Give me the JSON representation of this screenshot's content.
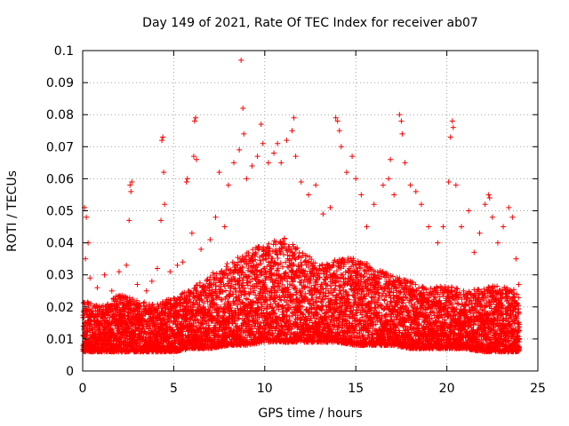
{
  "chart_data": {
    "type": "scatter",
    "title": "Day 149 of 2021, Rate Of TEC Index for receiver ab07",
    "xlabel": "GPS time / hours",
    "ylabel": "ROTI / TECUs",
    "xlim": [
      0,
      25
    ],
    "ylim": [
      0,
      0.1
    ],
    "xticks": [
      0,
      5,
      10,
      15,
      20,
      25
    ],
    "xtick_labels": [
      "0",
      "5",
      "10",
      "15",
      "20",
      "25"
    ],
    "yticks": [
      0,
      0.01,
      0.02,
      0.03,
      0.04,
      0.05,
      0.06,
      0.07,
      0.08,
      0.09,
      0.1
    ],
    "ytick_labels": [
      "0",
      "0.01",
      "0.02",
      "0.03",
      "0.04",
      "0.05",
      "0.06",
      "0.07",
      "0.08",
      "0.09",
      "0.1"
    ],
    "grid": true,
    "marker": "+",
    "color": "#ff0000",
    "series": [
      {
        "points": [
          [
            0.1,
            0.051
          ],
          [
            0.2,
            0.048
          ],
          [
            0.3,
            0.04
          ],
          [
            0.15,
            0.035
          ],
          [
            0.4,
            0.029
          ],
          [
            0.8,
            0.026
          ],
          [
            1.2,
            0.03
          ],
          [
            1.6,
            0.025
          ],
          [
            2.0,
            0.031
          ],
          [
            2.4,
            0.033
          ],
          [
            2.55,
            0.047
          ],
          [
            2.6,
            0.058
          ],
          [
            2.65,
            0.056
          ],
          [
            2.7,
            0.059
          ],
          [
            3.0,
            0.027
          ],
          [
            3.5,
            0.025
          ],
          [
            3.8,
            0.028
          ],
          [
            4.1,
            0.032
          ],
          [
            4.3,
            0.047
          ],
          [
            4.35,
            0.072
          ],
          [
            4.4,
            0.073
          ],
          [
            4.45,
            0.062
          ],
          [
            4.5,
            0.052
          ],
          [
            4.8,
            0.031
          ],
          [
            5.2,
            0.033
          ],
          [
            5.5,
            0.034
          ],
          [
            5.7,
            0.059
          ],
          [
            5.75,
            0.06
          ],
          [
            6.0,
            0.043
          ],
          [
            6.1,
            0.067
          ],
          [
            6.15,
            0.078
          ],
          [
            6.2,
            0.079
          ],
          [
            6.25,
            0.066
          ],
          [
            6.5,
            0.038
          ],
          [
            7.0,
            0.041
          ],
          [
            7.3,
            0.048
          ],
          [
            7.5,
            0.062
          ],
          [
            7.8,
            0.045
          ],
          [
            8.0,
            0.058
          ],
          [
            8.3,
            0.065
          ],
          [
            8.6,
            0.069
          ],
          [
            8.7,
            0.097
          ],
          [
            8.8,
            0.082
          ],
          [
            8.85,
            0.074
          ],
          [
            9.0,
            0.06
          ],
          [
            9.3,
            0.064
          ],
          [
            9.6,
            0.067
          ],
          [
            9.8,
            0.077
          ],
          [
            9.9,
            0.071
          ],
          [
            10.2,
            0.065
          ],
          [
            10.5,
            0.068
          ],
          [
            10.7,
            0.071
          ],
          [
            10.9,
            0.065
          ],
          [
            11.2,
            0.072
          ],
          [
            11.5,
            0.075
          ],
          [
            11.6,
            0.079
          ],
          [
            11.7,
            0.067
          ],
          [
            12.0,
            0.059
          ],
          [
            12.4,
            0.055
          ],
          [
            12.8,
            0.058
          ],
          [
            13.2,
            0.049
          ],
          [
            13.6,
            0.051
          ],
          [
            13.9,
            0.079
          ],
          [
            14.0,
            0.078
          ],
          [
            14.1,
            0.075
          ],
          [
            14.2,
            0.07
          ],
          [
            14.5,
            0.062
          ],
          [
            14.8,
            0.067
          ],
          [
            15.0,
            0.06
          ],
          [
            15.3,
            0.055
          ],
          [
            15.6,
            0.045
          ],
          [
            16.0,
            0.052
          ],
          [
            16.5,
            0.058
          ],
          [
            16.8,
            0.06
          ],
          [
            16.9,
            0.066
          ],
          [
            17.1,
            0.055
          ],
          [
            17.4,
            0.08
          ],
          [
            17.5,
            0.078
          ],
          [
            17.55,
            0.074
          ],
          [
            17.7,
            0.065
          ],
          [
            18.0,
            0.058
          ],
          [
            18.3,
            0.056
          ],
          [
            18.6,
            0.052
          ],
          [
            19.0,
            0.045
          ],
          [
            19.5,
            0.04
          ],
          [
            19.8,
            0.045
          ],
          [
            20.1,
            0.059
          ],
          [
            20.2,
            0.073
          ],
          [
            20.3,
            0.078
          ],
          [
            20.35,
            0.076
          ],
          [
            20.5,
            0.058
          ],
          [
            20.8,
            0.045
          ],
          [
            21.2,
            0.05
          ],
          [
            21.5,
            0.037
          ],
          [
            21.8,
            0.043
          ],
          [
            22.1,
            0.052
          ],
          [
            22.3,
            0.055
          ],
          [
            22.35,
            0.054
          ],
          [
            22.5,
            0.048
          ],
          [
            22.8,
            0.04
          ],
          [
            23.1,
            0.045
          ],
          [
            23.4,
            0.051
          ],
          [
            23.6,
            0.048
          ],
          [
            23.8,
            0.035
          ],
          [
            23.95,
            0.027
          ]
        ]
      }
    ],
    "dense_band": {
      "note_hidden": false,
      "envelope_x": [
        0,
        1,
        2,
        3,
        4,
        5,
        6,
        7,
        8,
        9,
        10,
        11,
        12,
        13,
        14,
        15,
        16,
        17,
        18,
        19,
        20,
        21,
        22,
        23,
        24
      ],
      "envelope_low": [
        0.006,
        0.006,
        0.006,
        0.006,
        0.006,
        0.006,
        0.007,
        0.007,
        0.008,
        0.008,
        0.009,
        0.009,
        0.009,
        0.009,
        0.009,
        0.008,
        0.008,
        0.008,
        0.007,
        0.007,
        0.007,
        0.007,
        0.006,
        0.006,
        0.006
      ],
      "envelope_high": [
        0.022,
        0.02,
        0.024,
        0.022,
        0.021,
        0.023,
        0.026,
        0.03,
        0.034,
        0.037,
        0.04,
        0.042,
        0.038,
        0.033,
        0.035,
        0.036,
        0.032,
        0.03,
        0.028,
        0.026,
        0.027,
        0.025,
        0.026,
        0.027,
        0.025
      ]
    }
  }
}
